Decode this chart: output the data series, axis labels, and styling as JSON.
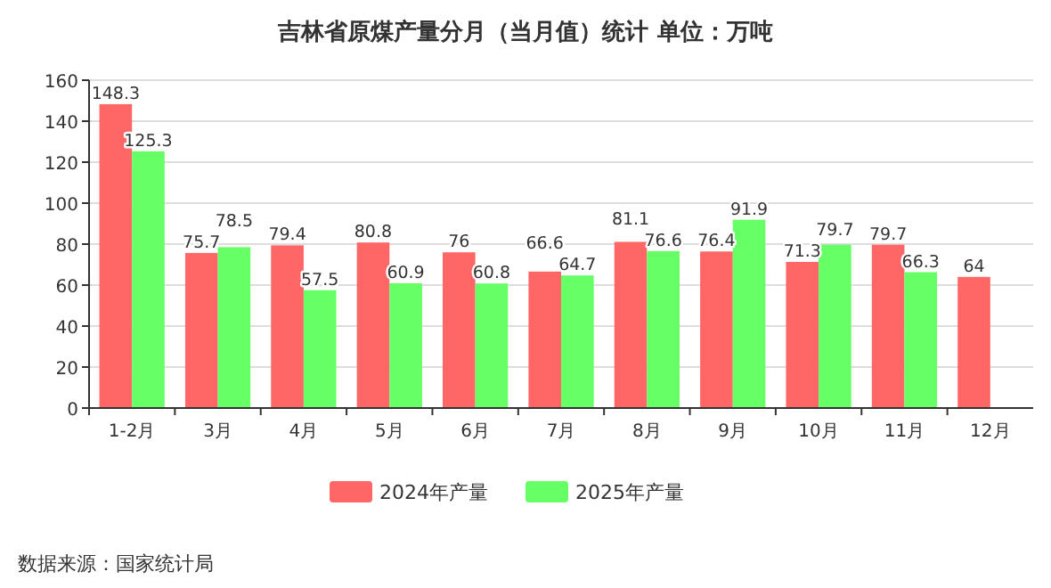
{
  "chart_data": {
    "type": "bar",
    "title": "吉林省原煤产量分月（当月值）统计  单位：万吨",
    "categories": [
      "1-2月",
      "3月",
      "4月",
      "5月",
      "6月",
      "7月",
      "8月",
      "9月",
      "10月",
      "11月",
      "12月"
    ],
    "series": [
      {
        "name": "2024年产量",
        "color": "#ff6666",
        "values": [
          148.3,
          75.7,
          79.4,
          80.8,
          76,
          66.6,
          81.1,
          76.4,
          71.3,
          79.7,
          64
        ]
      },
      {
        "name": "2025年产量",
        "color": "#66ff66",
        "values": [
          125.3,
          78.5,
          57.5,
          60.9,
          60.8,
          64.7,
          76.6,
          91.9,
          79.7,
          66.3,
          null
        ]
      }
    ],
    "ylim": [
      0,
      160
    ],
    "yticks": [
      0,
      20,
      40,
      60,
      80,
      100,
      120,
      140,
      160
    ],
    "grid": "y",
    "legend": "bottom",
    "data_labels": true,
    "annotations": [
      "数据来源：国家统计局"
    ]
  }
}
